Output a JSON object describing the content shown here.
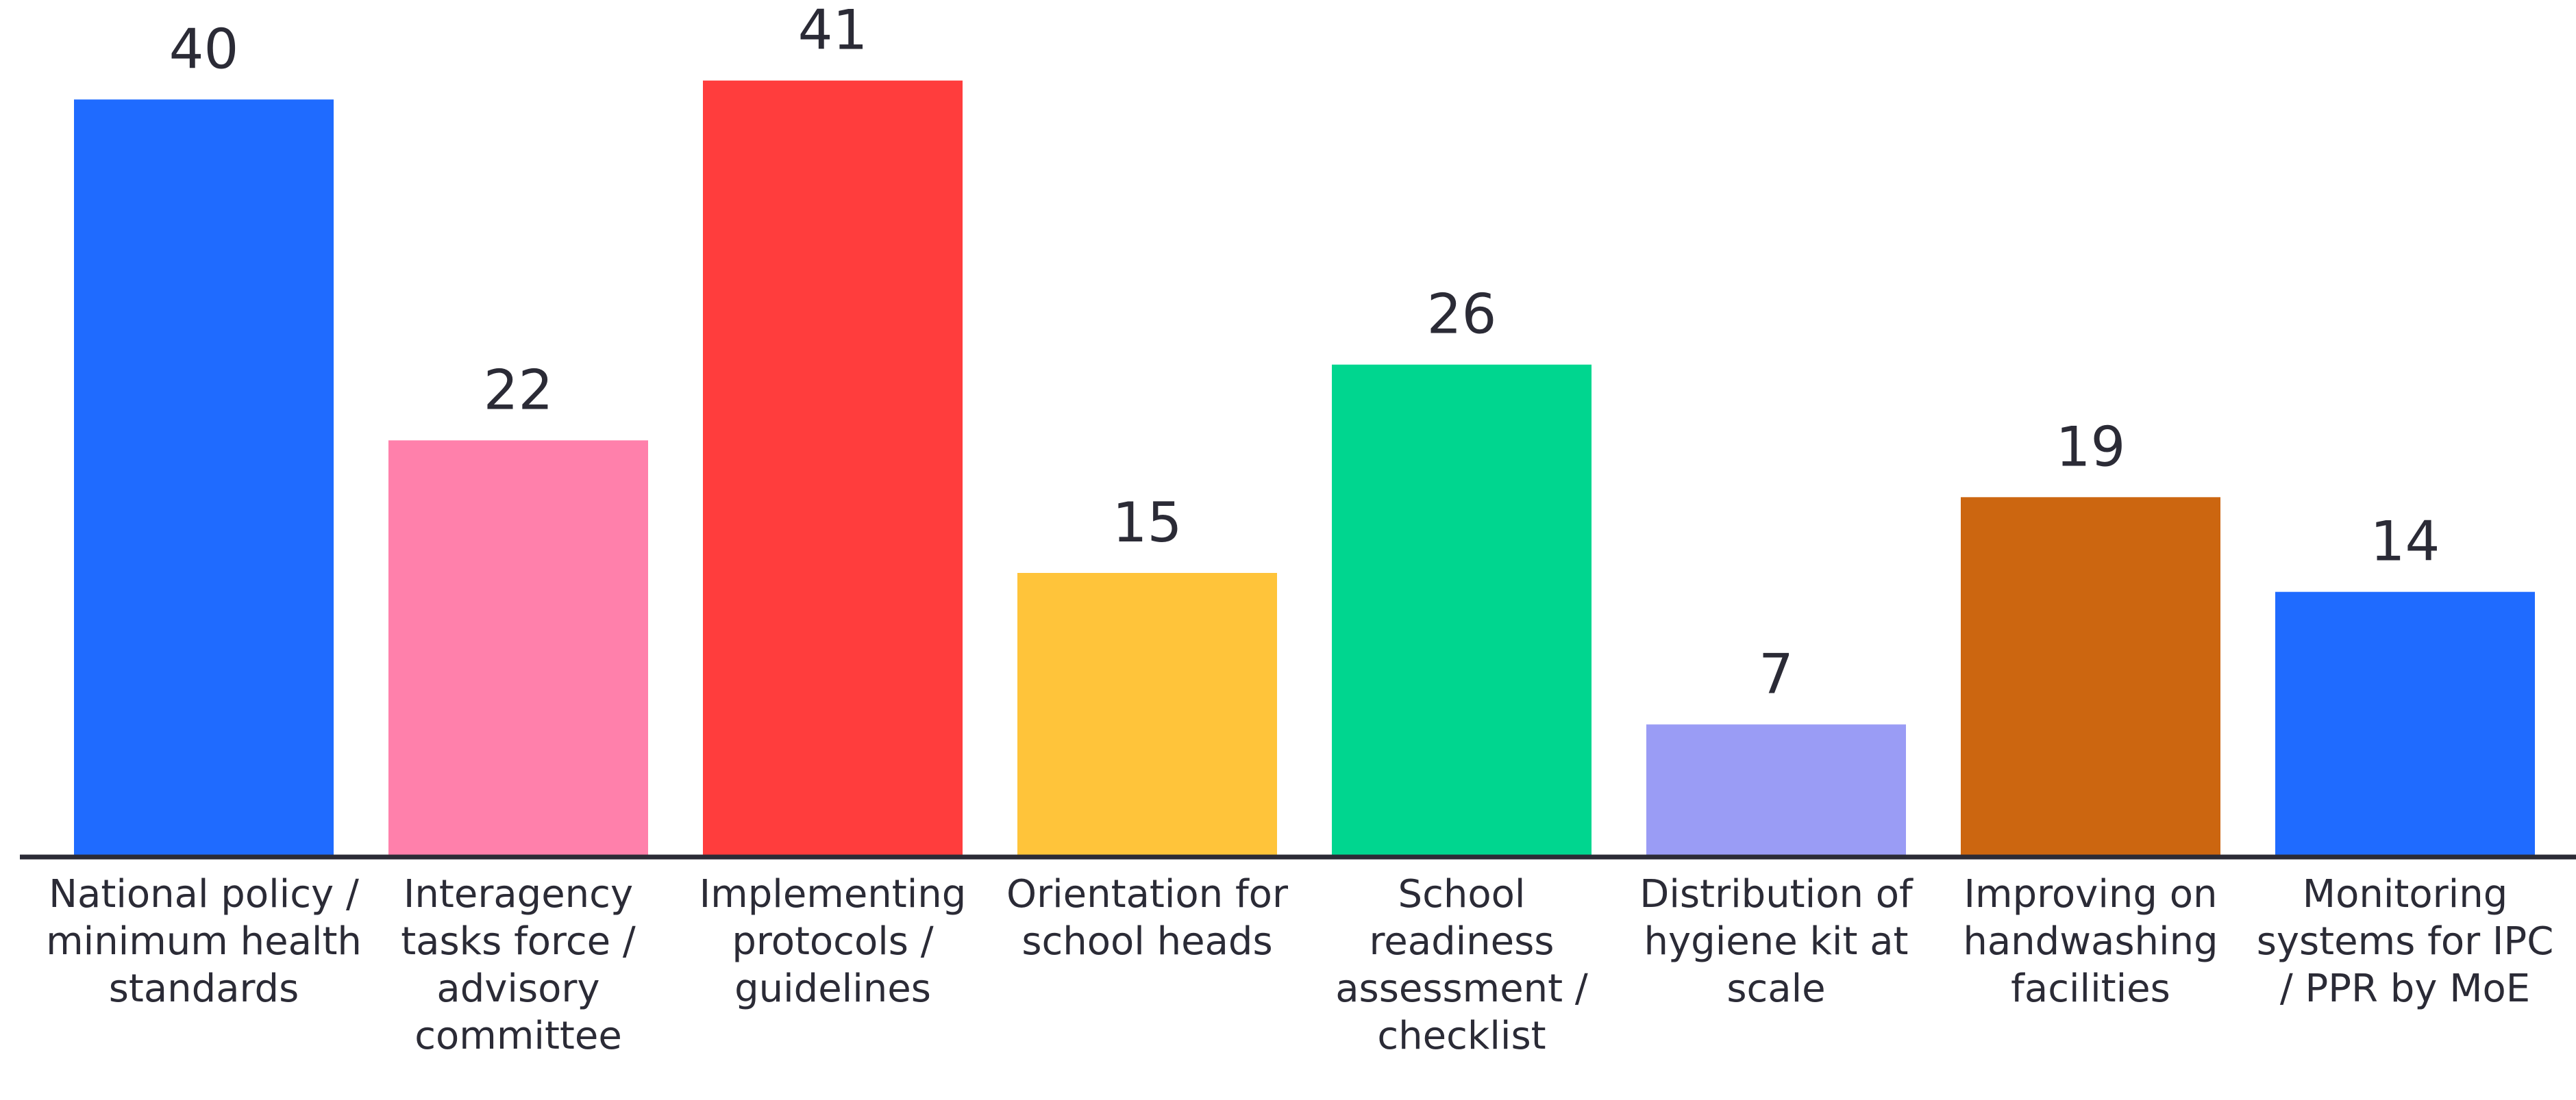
{
  "chart_data": {
    "type": "bar",
    "categories": [
      "National policy / minimum health standards",
      "Interagency tasks force / advisory committee",
      "Implementing protocols / guidelines",
      "Orientation for school heads",
      "School readiness assessment / checklist",
      "Distribution of hygiene kit at scale",
      "Improving on handwashing facilities",
      "Monitoring systems for IPC / PPR by MoE"
    ],
    "values": [
      40,
      22,
      41,
      15,
      26,
      7,
      19,
      14
    ],
    "colors": [
      "#1f6bff",
      "#ff80ab",
      "#ff3d3d",
      "#ffc43a",
      "#00d68f",
      "#9a9cf5",
      "#cc6610",
      "#1f6bff"
    ],
    "ylim": [
      0,
      45
    ]
  }
}
